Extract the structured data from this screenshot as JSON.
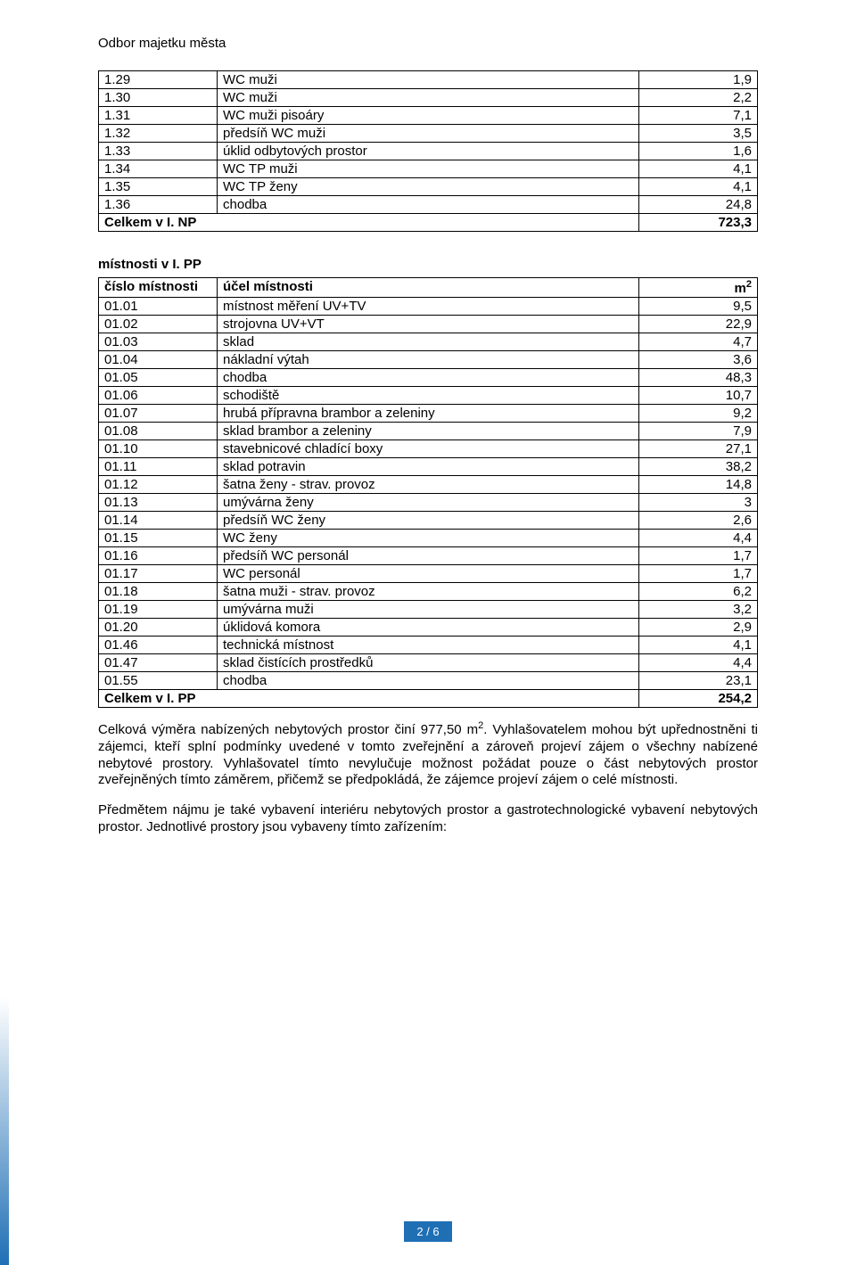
{
  "header": {
    "department": "Odbor majetku města"
  },
  "table1": {
    "rows": [
      {
        "num": "1.29",
        "label": "WC muži",
        "val": "1,9"
      },
      {
        "num": "1.30",
        "label": "WC muži",
        "val": "2,2"
      },
      {
        "num": "1.31",
        "label": "WC muži pisoáry",
        "val": "7,1"
      },
      {
        "num": "1.32",
        "label": "předsíň WC muži",
        "val": "3,5"
      },
      {
        "num": "1.33",
        "label": "úklid odbytových prostor",
        "val": "1,6"
      },
      {
        "num": "1.34",
        "label": "WC TP muži",
        "val": "4,1"
      },
      {
        "num": "1.35",
        "label": "WC TP ženy",
        "val": "4,1"
      },
      {
        "num": "1.36",
        "label": "chodba",
        "val": "24,8"
      }
    ],
    "total_label": "Celkem v I. NP",
    "total_val": "723,3"
  },
  "section2_title": "místnosti v I. PP",
  "table2": {
    "headers": {
      "num": "číslo místnosti",
      "label": "účel místnosti",
      "val_prefix": "m",
      "val_sup": "2"
    },
    "rows": [
      {
        "num": "01.01",
        "label": "místnost měření UV+TV",
        "val": "9,5"
      },
      {
        "num": "01.02",
        "label": "strojovna UV+VT",
        "val": "22,9"
      },
      {
        "num": "01.03",
        "label": "sklad",
        "val": "4,7"
      },
      {
        "num": "01.04",
        "label": "nákladní výtah",
        "val": "3,6"
      },
      {
        "num": "01.05",
        "label": "chodba",
        "val": "48,3"
      },
      {
        "num": "01.06",
        "label": "schodiště",
        "val": "10,7"
      },
      {
        "num": "01.07",
        "label": "hrubá přípravna brambor a zeleniny",
        "val": "9,2"
      },
      {
        "num": "01.08",
        "label": "sklad brambor a zeleniny",
        "val": "7,9"
      },
      {
        "num": "01.10",
        "label": "stavebnicové chladící boxy",
        "val": "27,1"
      },
      {
        "num": "01.11",
        "label": "sklad potravin",
        "val": "38,2"
      },
      {
        "num": "01.12",
        "label": "šatna ženy - strav. provoz",
        "val": "14,8"
      },
      {
        "num": "01.13",
        "label": "umývárna ženy",
        "val": "3"
      },
      {
        "num": "01.14",
        "label": "předsíň WC ženy",
        "val": "2,6"
      },
      {
        "num": "01.15",
        "label": "WC ženy",
        "val": "4,4"
      },
      {
        "num": "01.16",
        "label": "předsíň WC personál",
        "val": "1,7"
      },
      {
        "num": "01.17",
        "label": "WC personál",
        "val": "1,7"
      },
      {
        "num": "01.18",
        "label": "šatna muži - strav. provoz",
        "val": "6,2"
      },
      {
        "num": "01.19",
        "label": "umývárna muži",
        "val": "3,2"
      },
      {
        "num": "01.20",
        "label": "úklidová komora",
        "val": "2,9"
      },
      {
        "num": "01.46",
        "label": "technická místnost",
        "val": "4,1"
      },
      {
        "num": "01.47",
        "label": "sklad čistících prostředků",
        "val": "4,4"
      },
      {
        "num": "01.55",
        "label": "chodba",
        "val": "23,1"
      }
    ],
    "total_label": "Celkem v I. PP",
    "total_val": "254,2"
  },
  "para1_a": "Celková výměra nabízených nebytových prostor činí 977,50 m",
  "para1_sup": "2",
  "para1_b": ". Vyhlašovatelem mohou být upřednostněni ti zájemci, kteří splní podmínky uvedené v tomto zveřejnění a zároveň projeví zájem o všechny nabízené nebytové prostory. Vyhlašovatel tímto nevylučuje možnost požádat pouze o část nebytových prostor zveřejněných tímto záměrem, přičemž se předpokládá, že zájemce projeví zájem o celé místnosti.",
  "para2": "Předmětem nájmu je také vybavení interiéru nebytových prostor a gastrotechnologické vybavení nebytových prostor. Jednotlivé prostory jsou vybaveny tímto zařízením:",
  "footer": {
    "page": "2 / 6"
  }
}
